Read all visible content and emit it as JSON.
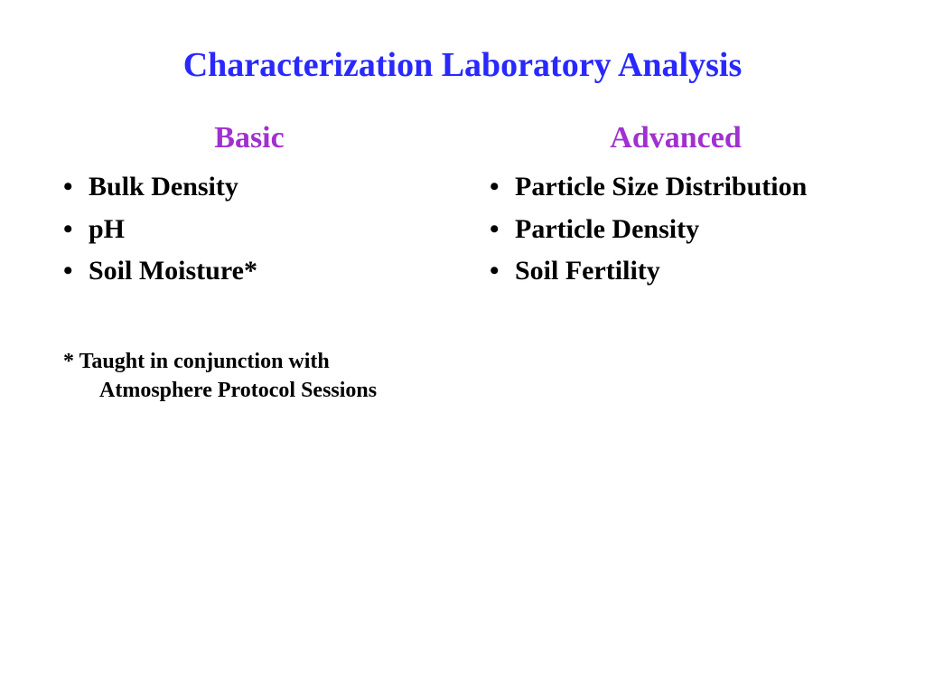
{
  "title": "Characterization Laboratory Analysis",
  "title_color": "#2828ff",
  "title_fontsize": 38,
  "heading_color": "#a030d0",
  "heading_fontsize": 34,
  "item_fontsize": 30,
  "footnote_fontsize": 24,
  "background_color": "#ffffff",
  "text_color": "#000000",
  "columns": [
    {
      "heading": "Basic",
      "items": [
        "Bulk Density",
        "pH",
        "Soil Moisture*"
      ],
      "footnote_line1": "* Taught in conjunction with",
      "footnote_line2": "Atmosphere Protocol Sessions"
    },
    {
      "heading": "Advanced",
      "items": [
        "Particle Size Distribution",
        "Particle Density",
        "Soil Fertility"
      ]
    }
  ]
}
